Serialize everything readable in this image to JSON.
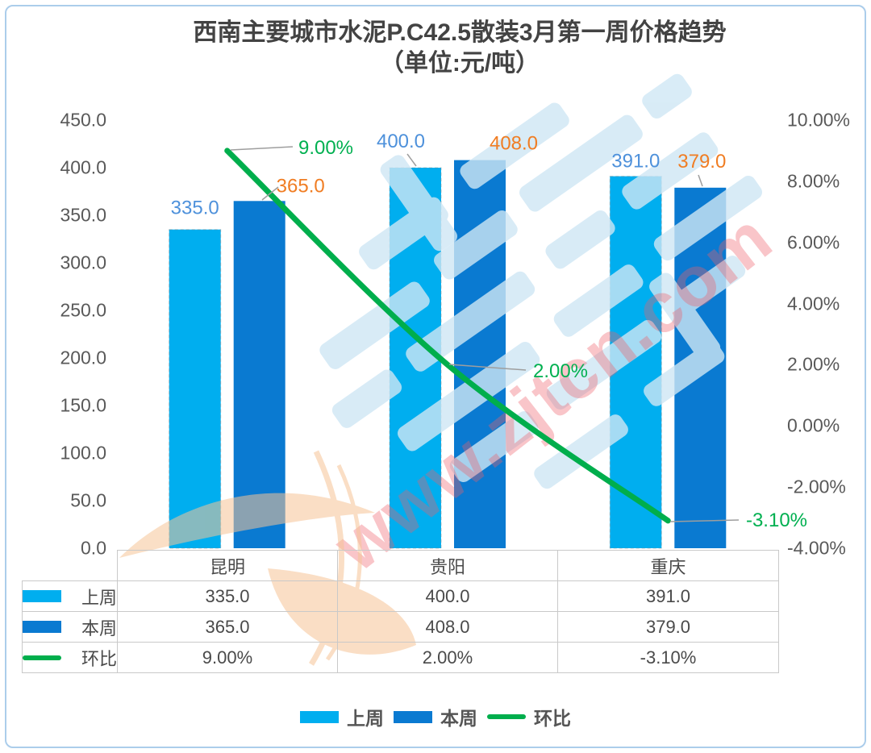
{
  "chart_data": {
    "type": "bar",
    "title_line1": "西南主要城市水泥P.C42.5散装3月第一周价格趋势",
    "title_line2": "（单位:元/吨）",
    "categories": [
      "昆明",
      "贵阳",
      "重庆"
    ],
    "series": [
      {
        "name": "上周",
        "type": "bar",
        "color": "#00AEEF",
        "values": [
          335.0,
          400.0,
          391.0
        ],
        "labels": [
          "335.0",
          "400.0",
          "391.0"
        ],
        "label_color": "#4E91DB"
      },
      {
        "name": "本周",
        "type": "bar",
        "color": "#0A7AD1",
        "values": [
          365.0,
          408.0,
          379.0
        ],
        "labels": [
          "365.0",
          "408.0",
          "379.0"
        ],
        "label_color": "#F07D23"
      },
      {
        "name": "环比",
        "type": "line",
        "color": "#00AE4C",
        "values": [
          9.0,
          2.0,
          -3.1
        ],
        "labels": [
          "9.00%",
          "2.00%",
          "-3.10%"
        ],
        "label_color": "#00B050"
      }
    ],
    "left_axis": {
      "min": 0,
      "max": 450,
      "ticks": [
        "450.0",
        "400.0",
        "350.0",
        "300.0",
        "250.0",
        "200.0",
        "150.0",
        "100.0",
        "50.0",
        "0.0"
      ]
    },
    "right_axis": {
      "min": -4,
      "max": 10,
      "ticks": [
        "10.00%",
        "8.00%",
        "6.00%",
        "4.00%",
        "2.00%",
        "0.00%",
        "-2.00%",
        "-4.00%"
      ]
    },
    "grid": false,
    "legend_position": "bottom"
  },
  "table": {
    "columns": [
      "昆明",
      "贵阳",
      "重庆"
    ],
    "rows": [
      {
        "label": "上周",
        "values": [
          "335.0",
          "400.0",
          "391.0"
        ]
      },
      {
        "label": "本周",
        "values": [
          "365.0",
          "408.0",
          "379.0"
        ]
      },
      {
        "label": "环比",
        "values": [
          "9.00%",
          "2.00%",
          "-3.10%"
        ]
      }
    ]
  },
  "watermark": {
    "url": "www.zjtcn.com"
  }
}
